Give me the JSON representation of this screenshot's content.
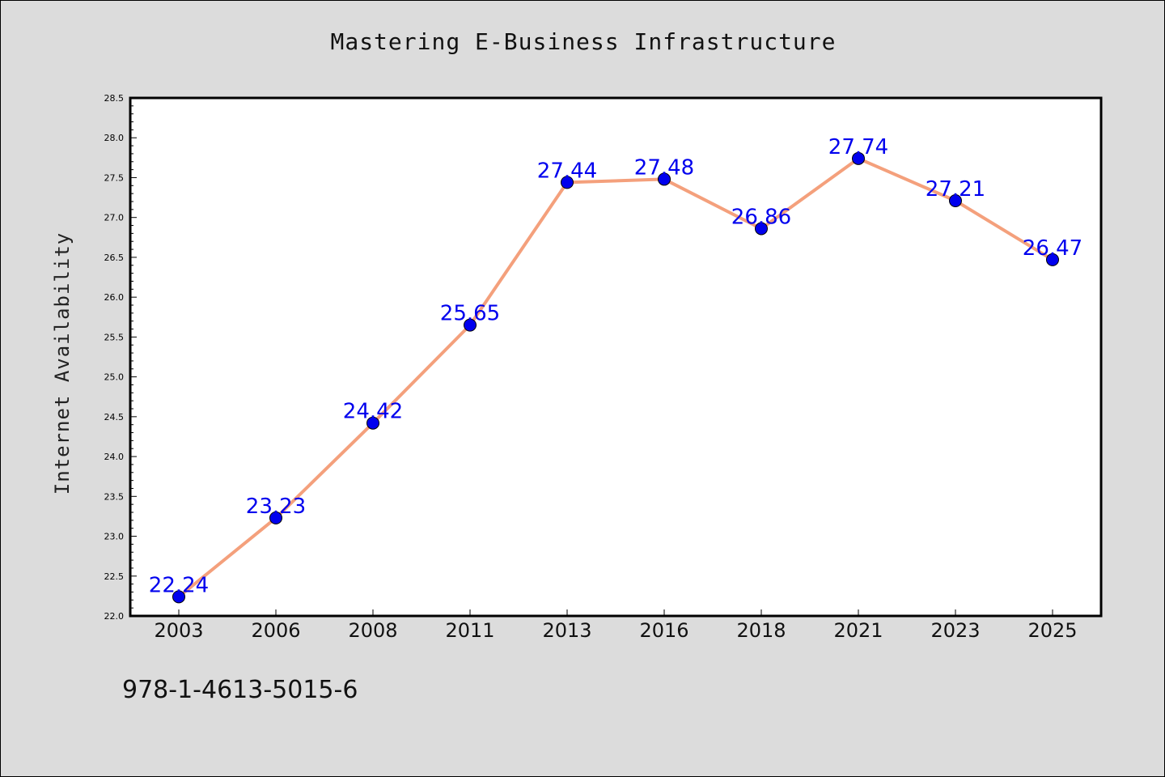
{
  "chart_data": {
    "type": "line",
    "title": "Mastering E-Business Infrastructure",
    "ylabel": "Internet Availability",
    "xlabel": "",
    "categories": [
      "2003",
      "2006",
      "2008",
      "2011",
      "2013",
      "2016",
      "2018",
      "2021",
      "2023",
      "2025"
    ],
    "series": [
      {
        "values": [
          22.24,
          23.23,
          24.42,
          25.65,
          27.44,
          27.48,
          26.86,
          27.74,
          27.21,
          26.47
        ],
        "labels": [
          "22.24",
          "23.23",
          "24.42",
          "25.65",
          "27.44",
          "27.48",
          "26.86",
          "27.74",
          "27.21",
          "26.47"
        ],
        "line_color": "#f4a07c",
        "marker_color": "#0000ee"
      }
    ],
    "ylim": [
      22.0,
      28.5
    ],
    "yticks": [
      "22.0",
      "22.5",
      "23.0",
      "23.5",
      "24.0",
      "24.5",
      "25.0",
      "25.5",
      "26.0",
      "26.5",
      "27.0",
      "27.5",
      "28.0",
      "28.5"
    ],
    "grid": false,
    "legend": "none"
  },
  "footer": {
    "isbn": "978-1-4613-5015-6"
  },
  "colors": {
    "background": "#dcdcdc",
    "plot_background": "#ffffff",
    "label_color": "#0000ee"
  }
}
